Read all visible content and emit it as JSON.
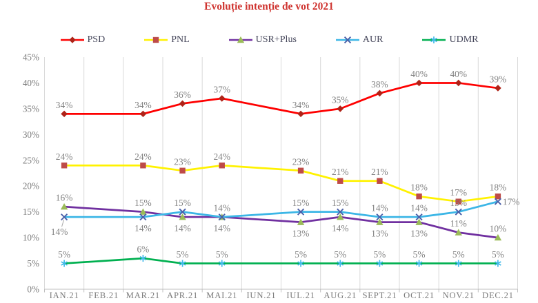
{
  "title": "Evoluție intenție de vot 2021",
  "chart_data": {
    "type": "line",
    "title": "Evoluție intenție de vot 2021",
    "legend_position": "top",
    "grid": "vertical-only",
    "x_categories": [
      "IAN.21",
      "FEB.21",
      "MAR.21",
      "APR.21",
      "MAI.21",
      "IUN.21",
      "IUL.21",
      "AUG.21",
      "SEPT.21",
      "OCT.21",
      "NOV.21",
      "DEC.21"
    ],
    "y_min": 0,
    "y_max": 45,
    "y_step": 5,
    "y_tick_labels": [
      "0%",
      "5%",
      "10%",
      "15%",
      "20%",
      "25%",
      "30%",
      "35%",
      "40%",
      "45%"
    ],
    "label_format": "{v}%",
    "series": [
      {
        "name": "PSD",
        "marker": "diamond",
        "line_color": "#FE0000",
        "marker_color": "#AF2318",
        "values": [
          34,
          null,
          34,
          36,
          37,
          null,
          34,
          35,
          38,
          40,
          40,
          39
        ],
        "label_pos": [
          "above",
          null,
          "above",
          "above",
          "above",
          null,
          "above",
          "above",
          "above",
          "above",
          "above",
          "above"
        ]
      },
      {
        "name": "PNL",
        "marker": "square",
        "line_color": "#FFF200",
        "marker_color": "#BE4B48",
        "values": [
          24,
          null,
          24,
          23,
          24,
          null,
          23,
          21,
          21,
          18,
          17,
          18
        ],
        "label_pos": [
          "above",
          null,
          "above",
          "above",
          "above",
          null,
          "above",
          "above",
          "above",
          "above",
          "above",
          "above"
        ]
      },
      {
        "name": "USR+Plus",
        "marker": "triangle",
        "line_color": "#7030A0",
        "marker_color": "#9BBB59",
        "values": [
          16,
          null,
          15,
          14,
          14,
          null,
          13,
          14,
          13,
          13,
          11,
          10
        ],
        "label_pos": [
          "above",
          null,
          "above",
          "below",
          "above",
          null,
          "below",
          "below",
          "below",
          "below",
          "above",
          "above"
        ]
      },
      {
        "name": "AUR",
        "marker": "x",
        "line_color": "#3CB6E6",
        "marker_color": "#4A5FA8",
        "values": [
          14,
          null,
          14,
          15,
          14,
          null,
          15,
          15,
          14,
          14,
          15,
          17
        ],
        "label_pos": [
          "below-leader",
          null,
          "below",
          "above",
          "below",
          null,
          "above",
          "above",
          "above",
          "above",
          "above",
          "right"
        ]
      },
      {
        "name": "UDMR",
        "marker": "asterisk",
        "line_color": "#00B050",
        "marker_color": "#41B9E9",
        "values": [
          5,
          null,
          6,
          5,
          5,
          null,
          5,
          5,
          5,
          5,
          5,
          5
        ],
        "label_pos": [
          "above",
          null,
          "above",
          "above",
          "above",
          null,
          "above",
          "above",
          "above",
          "above",
          "above",
          "above"
        ]
      }
    ],
    "colors": {
      "title": "#CF3430",
      "axis_text": "#7B7B7B",
      "data_label": "#828282",
      "legend_text": "#45465A",
      "gridline": "#D9D9D9",
      "axis_line": "#BFBFBF",
      "leader_line": "#A6A6A6"
    }
  }
}
